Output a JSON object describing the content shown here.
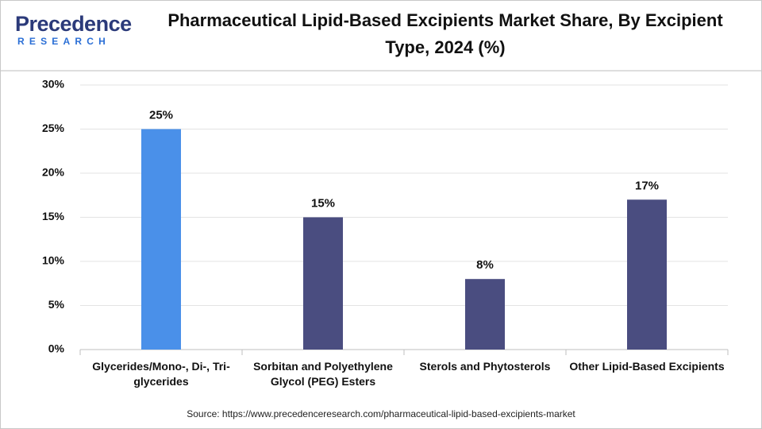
{
  "logo": {
    "name": "Precedence",
    "tagline": "RESEARCH"
  },
  "chart_data": {
    "type": "bar",
    "title": "Pharmaceutical Lipid-Based Excipients Market Share, By Excipient Type, 2024 (%)",
    "categories": [
      "Glycerides/Mono-, Di-, Tri-glycerides",
      "Sorbitan and Polyethylene Glycol (PEG) Esters",
      "Sterols and Phytosterols",
      "Other Lipid-Based Excipients"
    ],
    "values": [
      25,
      15,
      8,
      17
    ],
    "value_labels": [
      "25%",
      "15%",
      "8%",
      "17%"
    ],
    "colors": [
      "#4a90e9",
      "#4a4d80",
      "#4a4d80",
      "#4a4d80"
    ],
    "ylim": [
      0,
      30
    ],
    "yticks": [
      {
        "value": 0,
        "label": "0%"
      },
      {
        "value": 5,
        "label": "5%"
      },
      {
        "value": 10,
        "label": "10%"
      },
      {
        "value": 15,
        "label": "15%"
      },
      {
        "value": 20,
        "label": "20%"
      },
      {
        "value": 25,
        "label": "25%"
      },
      {
        "value": 30,
        "label": "30%"
      }
    ],
    "grid": true,
    "source": "Source: https://www.precedenceresearch.com/pharmaceutical-lipid-based-excipients-market"
  }
}
